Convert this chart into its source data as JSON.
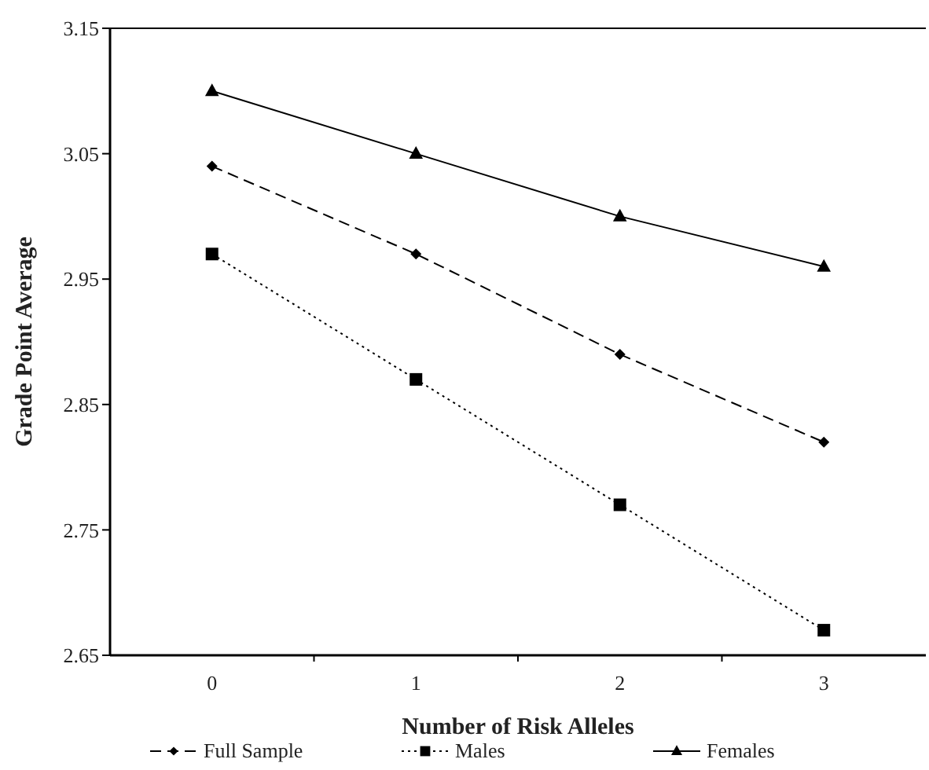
{
  "chart_data": {
    "type": "line",
    "xlabel": "Number of Risk Alleles",
    "ylabel": "Grade Point Average",
    "categories": [
      "0",
      "1",
      "2",
      "3"
    ],
    "ylim": [
      2.65,
      3.15
    ],
    "yticks": [
      {
        "value": 2.65,
        "label": "2.65"
      },
      {
        "value": 2.75,
        "label": "2.75"
      },
      {
        "value": 2.85,
        "label": "2.85"
      },
      {
        "value": 2.95,
        "label": "2.95"
      },
      {
        "value": 3.05,
        "label": "3.05"
      },
      {
        "value": 3.15,
        "label": "3.15"
      }
    ],
    "grid": false,
    "legend": "bottom",
    "series": [
      {
        "name": "Full Sample",
        "color": "#000000",
        "marker": "diamond",
        "line_style": "dashed",
        "values": [
          3.04,
          2.97,
          2.89,
          2.82
        ]
      },
      {
        "name": "Males",
        "color": "#000000",
        "marker": "square",
        "line_style": "dotted",
        "values": [
          2.97,
          2.87,
          2.77,
          2.67
        ]
      },
      {
        "name": "Females",
        "color": "#000000",
        "marker": "triangle",
        "line_style": "solid",
        "values": [
          3.1,
          3.05,
          3.0,
          2.96
        ]
      }
    ]
  }
}
